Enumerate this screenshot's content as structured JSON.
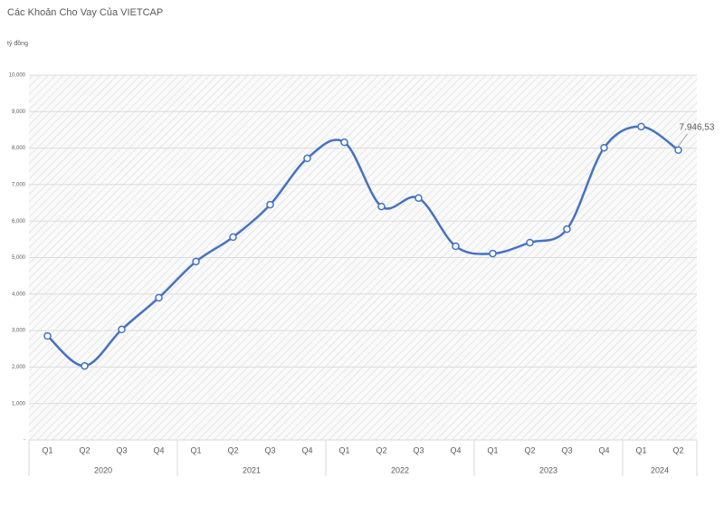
{
  "chart_data": {
    "type": "line",
    "title": "Các Khoản Cho Vay Của VIETCAP",
    "y_label": "tỷ đồng",
    "groups": [
      {
        "name": "2020",
        "categories": [
          "Q1",
          "Q2",
          "Q3",
          "Q4"
        ]
      },
      {
        "name": "2021",
        "categories": [
          "Q1",
          "Q2",
          "Q3",
          "Q4"
        ]
      },
      {
        "name": "2022",
        "categories": [
          "Q1",
          "Q2",
          "Q3",
          "Q4"
        ]
      },
      {
        "name": "2023",
        "categories": [
          "Q1",
          "Q2",
          "Q3",
          "Q4"
        ]
      },
      {
        "name": "2024",
        "categories": [
          "Q1",
          "Q2"
        ]
      }
    ],
    "series": [
      {
        "color": "#4472c4",
        "values": [
          2850,
          2030,
          3030,
          3900,
          4890,
          5560,
          6450,
          7720,
          8160,
          6400,
          6630,
          5310,
          5110,
          5410,
          5780,
          8010,
          8590,
          7946.53
        ],
        "value_labels": [
          null,
          null,
          null,
          null,
          null,
          null,
          null,
          null,
          null,
          null,
          null,
          null,
          null,
          null,
          null,
          null,
          null,
          "7.946,53"
        ]
      }
    ],
    "ylim": [
      0,
      10000
    ],
    "yticks": [
      {
        "value": 0,
        "label": "-"
      },
      {
        "value": 1000,
        "label": "1,000"
      },
      {
        "value": 2000,
        "label": "2,000"
      },
      {
        "value": 3000,
        "label": "3,000"
      },
      {
        "value": 4000,
        "label": "4,000"
      },
      {
        "value": 5000,
        "label": "5,000"
      },
      {
        "value": 6000,
        "label": "6,000"
      },
      {
        "value": 7000,
        "label": "7,000"
      },
      {
        "value": 8000,
        "label": "8,000"
      },
      {
        "value": 9000,
        "label": "9,000"
      },
      {
        "value": 10000,
        "label": "10,000"
      }
    ],
    "grid": true,
    "smooth": true
  }
}
